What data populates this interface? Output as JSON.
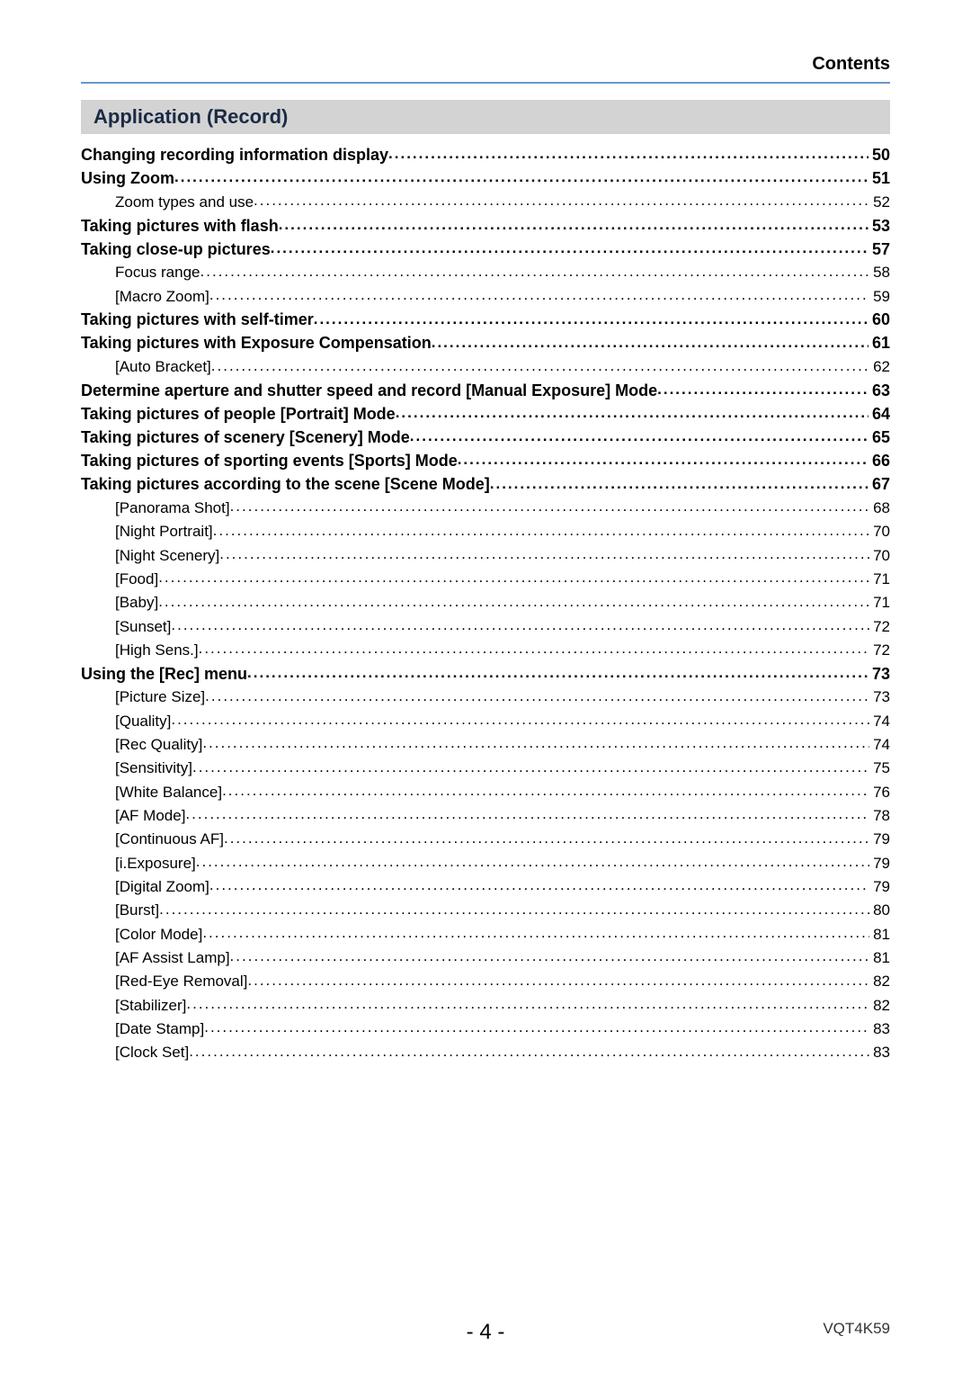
{
  "header": {
    "title": "Contents"
  },
  "section": {
    "title": "Application (Record)"
  },
  "toc": [
    {
      "label": "Changing recording information display",
      "page": "50",
      "bold": true,
      "indent": 0
    },
    {
      "label": "Using Zoom",
      "page": "51",
      "bold": true,
      "indent": 0
    },
    {
      "label": "Zoom types and use",
      "page": "52",
      "bold": false,
      "indent": 1
    },
    {
      "label": "Taking pictures with flash",
      "page": "53",
      "bold": true,
      "indent": 0
    },
    {
      "label": "Taking close-up pictures",
      "page": "57",
      "bold": true,
      "indent": 0
    },
    {
      "label": "Focus range",
      "page": "58",
      "bold": false,
      "indent": 1
    },
    {
      "label": "[Macro Zoom]",
      "page": "59",
      "bold": false,
      "indent": 1
    },
    {
      "label": "Taking pictures with self-timer",
      "page": "60",
      "bold": true,
      "indent": 0
    },
    {
      "label": "Taking pictures with Exposure Compensation",
      "page": "61",
      "bold": true,
      "indent": 0
    },
    {
      "label": "[Auto Bracket]",
      "page": "62",
      "bold": false,
      "indent": 1
    },
    {
      "label": "Determine aperture and shutter speed and record  [Manual Exposure] Mode",
      "page": "63",
      "bold": true,
      "indent": 0
    },
    {
      "label": "Taking pictures of people  [Portrait] Mode",
      "page": "64",
      "bold": true,
      "indent": 0
    },
    {
      "label": "Taking pictures of scenery  [Scenery] Mode",
      "page": "65",
      "bold": true,
      "indent": 0
    },
    {
      "label": "Taking pictures of sporting events  [Sports] Mode",
      "page": "66",
      "bold": true,
      "indent": 0
    },
    {
      "label": "Taking pictures according to the scene  [Scene Mode]",
      "page": "67",
      "bold": true,
      "indent": 0
    },
    {
      "label": "[Panorama Shot]",
      "page": "68",
      "bold": false,
      "indent": 1
    },
    {
      "label": "[Night Portrait]",
      "page": "70",
      "bold": false,
      "indent": 1
    },
    {
      "label": "[Night Scenery]",
      "page": "70",
      "bold": false,
      "indent": 1
    },
    {
      "label": "[Food]",
      "page": "71",
      "bold": false,
      "indent": 1
    },
    {
      "label": "[Baby]",
      "page": "71",
      "bold": false,
      "indent": 1
    },
    {
      "label": "[Sunset]",
      "page": "72",
      "bold": false,
      "indent": 1
    },
    {
      "label": "[High Sens.]",
      "page": "72",
      "bold": false,
      "indent": 1
    },
    {
      "label": "Using the [Rec] menu",
      "page": "73",
      "bold": true,
      "indent": 0
    },
    {
      "label": "[Picture Size]",
      "page": "73",
      "bold": false,
      "indent": 1
    },
    {
      "label": "[Quality]",
      "page": "74",
      "bold": false,
      "indent": 1
    },
    {
      "label": "[Rec Quality]",
      "page": "74",
      "bold": false,
      "indent": 1
    },
    {
      "label": "[Sensitivity]",
      "page": "75",
      "bold": false,
      "indent": 1
    },
    {
      "label": "[White Balance]",
      "page": "76",
      "bold": false,
      "indent": 1
    },
    {
      "label": "[AF Mode]",
      "page": "78",
      "bold": false,
      "indent": 1
    },
    {
      "label": "[Continuous AF]",
      "page": "79",
      "bold": false,
      "indent": 1
    },
    {
      "label": "[i.Exposure]",
      "page": "79",
      "bold": false,
      "indent": 1
    },
    {
      "label": "[Digital Zoom]",
      "page": "79",
      "bold": false,
      "indent": 1
    },
    {
      "label": "[Burst]",
      "page": "80",
      "bold": false,
      "indent": 1
    },
    {
      "label": "[Color Mode]",
      "page": "81",
      "bold": false,
      "indent": 1
    },
    {
      "label": "[AF Assist Lamp]",
      "page": "81",
      "bold": false,
      "indent": 1
    },
    {
      "label": "[Red-Eye Removal]",
      "page": "82",
      "bold": false,
      "indent": 1
    },
    {
      "label": "[Stabilizer]",
      "page": "82",
      "bold": false,
      "indent": 1
    },
    {
      "label": "[Date Stamp]",
      "page": "83",
      "bold": false,
      "indent": 1
    },
    {
      "label": "[Clock Set]",
      "page": "83",
      "bold": false,
      "indent": 1
    }
  ],
  "footer": {
    "page_number": "- 4 -",
    "doc_code": "VQT4K59"
  },
  "colors": {
    "rule": "#6699cc",
    "band_bg": "#d3d3d3",
    "band_text": "#1a2a44"
  }
}
